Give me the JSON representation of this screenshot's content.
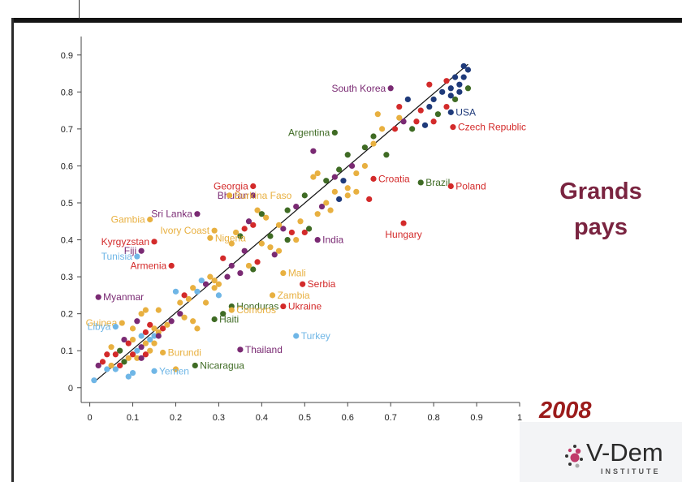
{
  "side_title_line1": "Grands",
  "side_title_line2": "pays",
  "year": "2008",
  "logo": {
    "name": "V-Dem",
    "sub": "INSTITUTE"
  },
  "colors": {
    "navy": "#1f3a7a",
    "green": "#3f6b24",
    "orange": "#e8b040",
    "purple": "#7a2a73",
    "red": "#d32a2a",
    "blue": "#6fb6e6",
    "accent": "#7a2440",
    "year": "#9b1b1b"
  },
  "chart_data": {
    "type": "scatter",
    "xlim": [
      -0.02,
      1.0
    ],
    "ylim": [
      -0.04,
      0.95
    ],
    "x_ticks": [
      0,
      0.1,
      0.2,
      0.3,
      0.4,
      0.5,
      0.6,
      0.7,
      0.8,
      0.9,
      1
    ],
    "x_tick_labels": [
      "0",
      "0.1",
      "0.2",
      "0.3",
      "0.4",
      "0.5",
      "0.6",
      "0.7",
      "0.8",
      "0.9",
      "1"
    ],
    "y_ticks": [
      0,
      0.1,
      0.2,
      0.3,
      0.4,
      0.5,
      0.6,
      0.7,
      0.8,
      0.9
    ],
    "y_tick_labels": [
      "0",
      "0.1",
      "0.2",
      "0.3",
      "0.4",
      "0.5",
      "0.6",
      "0.7",
      "0.8",
      "0.9"
    ],
    "grid": false,
    "fit_line": {
      "x": [
        0.01,
        0.88
      ],
      "y": [
        0.015,
        0.875
      ]
    },
    "labeled_points": [
      {
        "label": "South Korea",
        "x": 0.7,
        "y": 0.81,
        "color": "purple",
        "side": "left"
      },
      {
        "label": "USA",
        "x": 0.84,
        "y": 0.745,
        "color": "navy",
        "side": "right"
      },
      {
        "label": "Czech Republic",
        "x": 0.845,
        "y": 0.705,
        "color": "red",
        "side": "right"
      },
      {
        "label": "Argentina",
        "x": 0.57,
        "y": 0.69,
        "color": "green",
        "side": "left"
      },
      {
        "label": "Georgia",
        "x": 0.38,
        "y": 0.545,
        "color": "red",
        "side": "left"
      },
      {
        "label": "Croatia",
        "x": 0.66,
        "y": 0.565,
        "color": "red",
        "side": "right"
      },
      {
        "label": "Brazil",
        "x": 0.77,
        "y": 0.555,
        "color": "green",
        "side": "right"
      },
      {
        "label": "Poland",
        "x": 0.84,
        "y": 0.545,
        "color": "red",
        "side": "right"
      },
      {
        "label": "Bhutan",
        "x": 0.38,
        "y": 0.52,
        "color": "purple",
        "side": "left"
      },
      {
        "label": "Burkina Faso",
        "x": 0.325,
        "y": 0.52,
        "color": "orange",
        "side": "right"
      },
      {
        "label": "Sri Lanka",
        "x": 0.25,
        "y": 0.47,
        "color": "purple",
        "side": "left"
      },
      {
        "label": "Gambia",
        "x": 0.14,
        "y": 0.455,
        "color": "orange",
        "side": "left"
      },
      {
        "label": "Ivory Coast",
        "x": 0.29,
        "y": 0.425,
        "color": "orange",
        "side": "left"
      },
      {
        "label": "Nigeria",
        "x": 0.28,
        "y": 0.405,
        "color": "orange",
        "side": "right"
      },
      {
        "label": "India",
        "x": 0.53,
        "y": 0.4,
        "color": "purple",
        "side": "right"
      },
      {
        "label": "Hungary",
        "x": 0.73,
        "y": 0.445,
        "color": "red",
        "side": "below"
      },
      {
        "label": "Kyrgyzstan",
        "x": 0.15,
        "y": 0.395,
        "color": "red",
        "side": "left"
      },
      {
        "label": "Fiji",
        "x": 0.12,
        "y": 0.37,
        "color": "purple",
        "side": "left"
      },
      {
        "label": "Tunisia",
        "x": 0.11,
        "y": 0.355,
        "color": "blue",
        "side": "left"
      },
      {
        "label": "Armenia",
        "x": 0.19,
        "y": 0.33,
        "color": "red",
        "side": "left"
      },
      {
        "label": "Mali",
        "x": 0.45,
        "y": 0.31,
        "color": "orange",
        "side": "right"
      },
      {
        "label": "Serbia",
        "x": 0.495,
        "y": 0.28,
        "color": "red",
        "side": "right"
      },
      {
        "label": "Myanmar",
        "x": 0.02,
        "y": 0.245,
        "color": "purple",
        "side": "right"
      },
      {
        "label": "Zambia",
        "x": 0.425,
        "y": 0.25,
        "color": "orange",
        "side": "right"
      },
      {
        "label": "Honduras",
        "x": 0.33,
        "y": 0.22,
        "color": "green",
        "side": "right"
      },
      {
        "label": "Ukraine",
        "x": 0.45,
        "y": 0.22,
        "color": "red",
        "side": "right"
      },
      {
        "label": "Comoros",
        "x": 0.33,
        "y": 0.21,
        "color": "orange",
        "side": "right"
      },
      {
        "label": "Haiti",
        "x": 0.29,
        "y": 0.185,
        "color": "green",
        "side": "right"
      },
      {
        "label": "Guinea",
        "x": 0.075,
        "y": 0.175,
        "color": "orange",
        "side": "left"
      },
      {
        "label": "Libya",
        "x": 0.06,
        "y": 0.165,
        "color": "blue",
        "side": "left"
      },
      {
        "label": "Turkey",
        "x": 0.48,
        "y": 0.14,
        "color": "blue",
        "side": "right"
      },
      {
        "label": "Thailand",
        "x": 0.35,
        "y": 0.103,
        "color": "purple",
        "side": "right"
      },
      {
        "label": "Burundi",
        "x": 0.17,
        "y": 0.095,
        "color": "orange",
        "side": "right"
      },
      {
        "label": "Nicaragua",
        "x": 0.245,
        "y": 0.06,
        "color": "green",
        "side": "right"
      },
      {
        "label": "Yemen",
        "x": 0.15,
        "y": 0.045,
        "color": "blue",
        "side": "right"
      }
    ],
    "other_points": [
      [
        0.87,
        0.87,
        "navy"
      ],
      [
        0.88,
        0.86,
        "navy"
      ],
      [
        0.85,
        0.84,
        "navy"
      ],
      [
        0.86,
        0.82,
        "navy"
      ],
      [
        0.84,
        0.81,
        "navy"
      ],
      [
        0.83,
        0.83,
        "red"
      ],
      [
        0.82,
        0.8,
        "navy"
      ],
      [
        0.8,
        0.78,
        "navy"
      ],
      [
        0.79,
        0.76,
        "navy"
      ],
      [
        0.77,
        0.75,
        "red"
      ],
      [
        0.74,
        0.78,
        "navy"
      ],
      [
        0.72,
        0.76,
        "red"
      ],
      [
        0.76,
        0.72,
        "red"
      ],
      [
        0.78,
        0.71,
        "navy"
      ],
      [
        0.8,
        0.72,
        "red"
      ],
      [
        0.85,
        0.78,
        "green"
      ],
      [
        0.88,
        0.81,
        "green"
      ],
      [
        0.83,
        0.76,
        "red"
      ],
      [
        0.81,
        0.74,
        "green"
      ],
      [
        0.84,
        0.79,
        "navy"
      ],
      [
        0.86,
        0.8,
        "navy"
      ],
      [
        0.87,
        0.84,
        "navy"
      ],
      [
        0.79,
        0.82,
        "red"
      ],
      [
        0.75,
        0.7,
        "green"
      ],
      [
        0.73,
        0.72,
        "purple"
      ],
      [
        0.68,
        0.7,
        "orange"
      ],
      [
        0.67,
        0.74,
        "orange"
      ],
      [
        0.66,
        0.68,
        "green"
      ],
      [
        0.64,
        0.65,
        "green"
      ],
      [
        0.71,
        0.7,
        "red"
      ],
      [
        0.72,
        0.73,
        "orange"
      ],
      [
        0.69,
        0.63,
        "green"
      ],
      [
        0.66,
        0.66,
        "orange"
      ],
      [
        0.6,
        0.63,
        "green"
      ],
      [
        0.61,
        0.6,
        "purple"
      ],
      [
        0.58,
        0.59,
        "green"
      ],
      [
        0.62,
        0.58,
        "orange"
      ],
      [
        0.64,
        0.6,
        "orange"
      ],
      [
        0.57,
        0.57,
        "purple"
      ],
      [
        0.55,
        0.56,
        "green"
      ],
      [
        0.53,
        0.58,
        "orange"
      ],
      [
        0.52,
        0.57,
        "orange"
      ],
      [
        0.59,
        0.56,
        "navy"
      ],
      [
        0.6,
        0.54,
        "orange"
      ],
      [
        0.57,
        0.53,
        "orange"
      ],
      [
        0.55,
        0.5,
        "orange"
      ],
      [
        0.5,
        0.52,
        "green"
      ],
      [
        0.48,
        0.49,
        "purple"
      ],
      [
        0.46,
        0.48,
        "green"
      ],
      [
        0.52,
        0.64,
        "purple"
      ],
      [
        0.53,
        0.47,
        "orange"
      ],
      [
        0.49,
        0.45,
        "orange"
      ],
      [
        0.47,
        0.42,
        "red"
      ],
      [
        0.45,
        0.43,
        "purple"
      ],
      [
        0.44,
        0.44,
        "orange"
      ],
      [
        0.42,
        0.41,
        "green"
      ],
      [
        0.4,
        0.39,
        "orange"
      ],
      [
        0.41,
        0.46,
        "orange"
      ],
      [
        0.39,
        0.48,
        "orange"
      ],
      [
        0.4,
        0.47,
        "green"
      ],
      [
        0.38,
        0.44,
        "red"
      ],
      [
        0.37,
        0.45,
        "purple"
      ],
      [
        0.36,
        0.43,
        "red"
      ],
      [
        0.34,
        0.42,
        "orange"
      ],
      [
        0.35,
        0.41,
        "green"
      ],
      [
        0.33,
        0.39,
        "orange"
      ],
      [
        0.36,
        0.37,
        "purple"
      ],
      [
        0.39,
        0.34,
        "red"
      ],
      [
        0.38,
        0.32,
        "green"
      ],
      [
        0.37,
        0.33,
        "orange"
      ],
      [
        0.35,
        0.31,
        "purple"
      ],
      [
        0.33,
        0.33,
        "purple"
      ],
      [
        0.31,
        0.35,
        "red"
      ],
      [
        0.32,
        0.3,
        "purple"
      ],
      [
        0.3,
        0.28,
        "orange"
      ],
      [
        0.29,
        0.29,
        "orange"
      ],
      [
        0.28,
        0.3,
        "orange"
      ],
      [
        0.27,
        0.28,
        "purple"
      ],
      [
        0.26,
        0.29,
        "blue"
      ],
      [
        0.25,
        0.26,
        "blue"
      ],
      [
        0.24,
        0.27,
        "orange"
      ],
      [
        0.23,
        0.24,
        "orange"
      ],
      [
        0.22,
        0.25,
        "red"
      ],
      [
        0.21,
        0.23,
        "orange"
      ],
      [
        0.2,
        0.26,
        "blue"
      ],
      [
        0.21,
        0.2,
        "purple"
      ],
      [
        0.19,
        0.18,
        "purple"
      ],
      [
        0.18,
        0.17,
        "orange"
      ],
      [
        0.17,
        0.16,
        "red"
      ],
      [
        0.16,
        0.15,
        "orange"
      ],
      [
        0.15,
        0.14,
        "blue"
      ],
      [
        0.14,
        0.13,
        "blue"
      ],
      [
        0.13,
        0.12,
        "orange"
      ],
      [
        0.12,
        0.11,
        "purple"
      ],
      [
        0.11,
        0.1,
        "blue"
      ],
      [
        0.1,
        0.09,
        "red"
      ],
      [
        0.09,
        0.08,
        "orange"
      ],
      [
        0.08,
        0.07,
        "green"
      ],
      [
        0.07,
        0.06,
        "red"
      ],
      [
        0.06,
        0.05,
        "blue"
      ],
      [
        0.05,
        0.06,
        "orange"
      ],
      [
        0.04,
        0.05,
        "blue"
      ],
      [
        0.03,
        0.07,
        "red"
      ],
      [
        0.02,
        0.06,
        "purple"
      ],
      [
        0.01,
        0.02,
        "blue"
      ],
      [
        0.12,
        0.2,
        "orange"
      ],
      [
        0.13,
        0.21,
        "orange"
      ],
      [
        0.14,
        0.17,
        "red"
      ],
      [
        0.11,
        0.18,
        "purple"
      ],
      [
        0.1,
        0.16,
        "orange"
      ],
      [
        0.13,
        0.15,
        "red"
      ],
      [
        0.15,
        0.16,
        "orange"
      ],
      [
        0.16,
        0.14,
        "purple"
      ],
      [
        0.12,
        0.14,
        "blue"
      ],
      [
        0.14,
        0.1,
        "orange"
      ],
      [
        0.15,
        0.12,
        "orange"
      ],
      [
        0.13,
        0.09,
        "red"
      ],
      [
        0.11,
        0.08,
        "orange"
      ],
      [
        0.1,
        0.04,
        "blue"
      ],
      [
        0.09,
        0.03,
        "blue"
      ],
      [
        0.07,
        0.1,
        "green"
      ],
      [
        0.06,
        0.09,
        "red"
      ],
      [
        0.04,
        0.09,
        "red"
      ],
      [
        0.05,
        0.11,
        "orange"
      ],
      [
        0.08,
        0.13,
        "purple"
      ],
      [
        0.09,
        0.12,
        "red"
      ],
      [
        0.1,
        0.13,
        "orange"
      ],
      [
        0.25,
        0.16,
        "orange"
      ],
      [
        0.24,
        0.18,
        "orange"
      ],
      [
        0.22,
        0.19,
        "orange"
      ],
      [
        0.2,
        0.05,
        "orange"
      ],
      [
        0.12,
        0.08,
        "purple"
      ],
      [
        0.16,
        0.21,
        "orange"
      ],
      [
        0.27,
        0.23,
        "orange"
      ],
      [
        0.29,
        0.27,
        "orange"
      ],
      [
        0.31,
        0.2,
        "green"
      ],
      [
        0.3,
        0.25,
        "blue"
      ],
      [
        0.43,
        0.36,
        "purple"
      ],
      [
        0.48,
        0.4,
        "orange"
      ],
      [
        0.5,
        0.42,
        "red"
      ],
      [
        0.51,
        0.43,
        "green"
      ],
      [
        0.46,
        0.4,
        "green"
      ],
      [
        0.42,
        0.38,
        "orange"
      ],
      [
        0.44,
        0.37,
        "orange"
      ],
      [
        0.56,
        0.48,
        "orange"
      ],
      [
        0.6,
        0.52,
        "orange"
      ],
      [
        0.62,
        0.53,
        "orange"
      ],
      [
        0.65,
        0.51,
        "red"
      ],
      [
        0.58,
        0.51,
        "navy"
      ],
      [
        0.54,
        0.49,
        "purple"
      ]
    ]
  }
}
